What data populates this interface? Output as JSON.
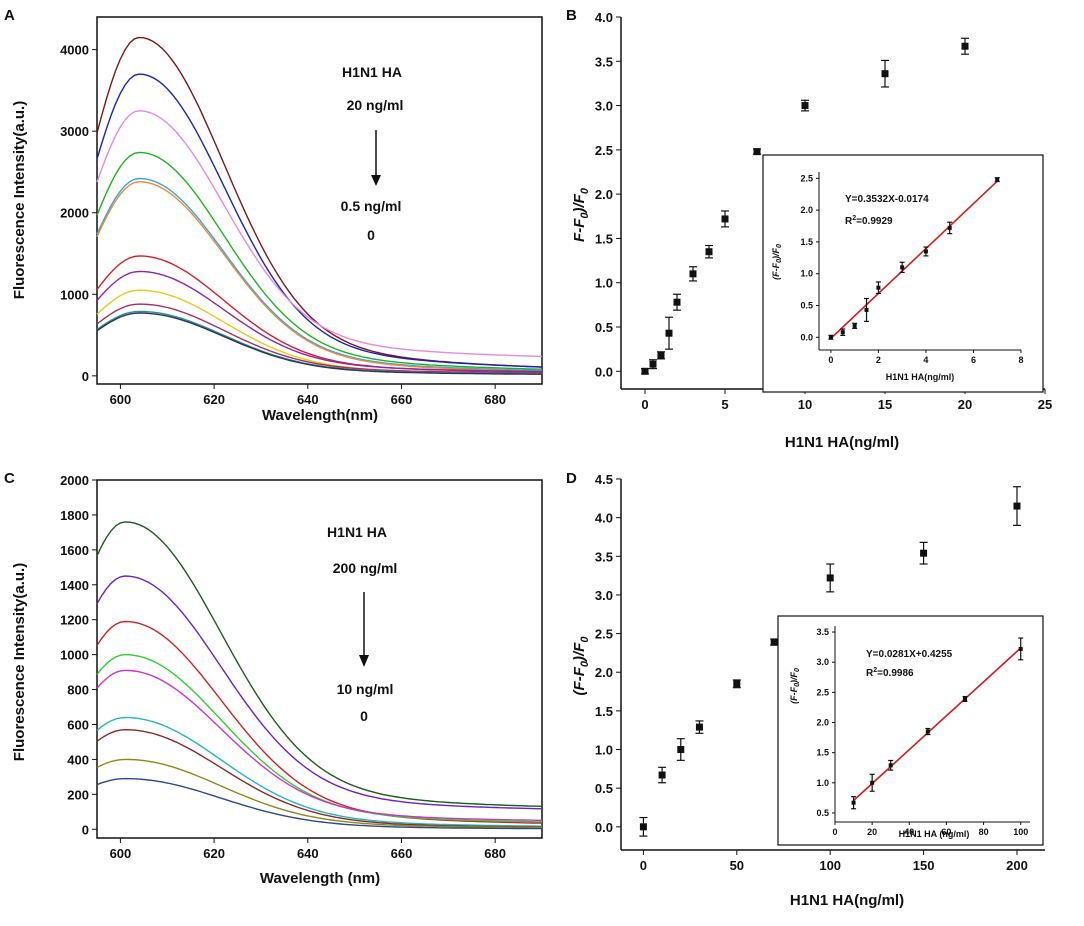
{
  "chart_data": [
    {
      "panel": "A",
      "type": "line",
      "xlabel": "Wavelength(nm)",
      "ylabel": "Fluorescence Intensity(a.u.)",
      "xlim": [
        595,
        690
      ],
      "ylim": [
        -100,
        4400
      ],
      "xticks": [
        600,
        620,
        640,
        660,
        680
      ],
      "yticks": [
        0,
        1000,
        2000,
        3000,
        4000
      ],
      "annotations": [
        "H1N1 HA",
        "20 ng/ml",
        "0.5 ng/ml",
        "0"
      ],
      "series": [
        {
          "color": "#7a1818",
          "peak": 4150,
          "base": 30
        },
        {
          "color": "#1a24b8",
          "peak": 3700,
          "base": 40
        },
        {
          "color": "#e38ae0",
          "peak": 3250,
          "base": 180
        },
        {
          "color": "#1db31d",
          "peak": 2740,
          "base": 30
        },
        {
          "color": "#37a6e8",
          "peak": 2420,
          "base": 20
        },
        {
          "color": "#f08a32",
          "peak": 2380,
          "base": 10
        },
        {
          "color": "#d2202a",
          "peak": 1470,
          "base": 20
        },
        {
          "color": "#8a2aa6",
          "peak": 1280,
          "base": 30
        },
        {
          "color": "#e3cc1a",
          "peak": 1050,
          "base": 10
        },
        {
          "color": "#a8325e",
          "peak": 880,
          "base": 20
        },
        {
          "color": "#2f8f90",
          "peak": 790,
          "base": 10
        },
        {
          "color": "#2a3560",
          "peak": 770,
          "base": 5
        }
      ]
    },
    {
      "panel": "B",
      "type": "scatter",
      "xlabel": "H1N1 HA(ng/ml)",
      "ylabel": "F-F0)/F0",
      "xlim": [
        -1.5,
        25
      ],
      "ylim": [
        -0.2,
        4.0
      ],
      "xticks": [
        0,
        5,
        10,
        15,
        20,
        25
      ],
      "yticks": [
        0.0,
        0.5,
        1.0,
        1.5,
        2.0,
        2.5,
        3.0,
        3.5,
        4.0
      ],
      "x": [
        0,
        0.5,
        1,
        1.5,
        2,
        3,
        4,
        5,
        7,
        10,
        15,
        20
      ],
      "y": [
        0.0,
        0.08,
        0.18,
        0.43,
        0.78,
        1.1,
        1.35,
        1.72,
        2.48,
        3.0,
        3.36,
        3.67
      ],
      "err": [
        0.03,
        0.05,
        0.04,
        0.18,
        0.09,
        0.08,
        0.07,
        0.09,
        0.03,
        0.06,
        0.15,
        0.09
      ],
      "inset": {
        "xlabel": "H1N1 HA(ng/ml)",
        "ylabel": "(F-F0)/F0",
        "xlim": [
          -0.5,
          8
        ],
        "ylim": [
          -0.2,
          2.6
        ],
        "xticks": [
          0,
          2,
          4,
          6,
          8
        ],
        "yticks": [
          0.0,
          0.5,
          1.0,
          1.5,
          2.0,
          2.5
        ],
        "x": [
          0,
          0.5,
          1,
          1.5,
          2,
          3,
          4,
          5,
          7
        ],
        "y": [
          0.0,
          0.08,
          0.18,
          0.43,
          0.78,
          1.1,
          1.35,
          1.72,
          2.48
        ],
        "err": [
          0.03,
          0.05,
          0.04,
          0.18,
          0.09,
          0.08,
          0.07,
          0.09,
          0.03
        ],
        "fit": {
          "slope": 0.3532,
          "intercept": -0.0174,
          "x_range": [
            0,
            7
          ]
        },
        "equation": "Y=0.3532X-0.0174",
        "r2_prefix": "R",
        "r2_sup": "2",
        "r2_value": "=0.9929"
      }
    },
    {
      "panel": "C",
      "type": "line",
      "xlabel": "Wavelength (nm)",
      "ylabel": "Fluorescence Intensity(a.u.)",
      "xlim": [
        595,
        690
      ],
      "ylim": [
        -50,
        2000
      ],
      "xticks": [
        600,
        620,
        640,
        660,
        680
      ],
      "yticks": [
        0,
        200,
        400,
        600,
        800,
        1000,
        1200,
        1400,
        1600,
        1800,
        2000
      ],
      "annotations": [
        "H1N1 HA",
        "200 ng/ml",
        "10 ng/ml",
        "0"
      ],
      "series": [
        {
          "color": "#1c5c1c",
          "peak": 1760,
          "base": 110
        },
        {
          "color": "#6a22c8",
          "peak": 1450,
          "base": 100
        },
        {
          "color": "#cc2222",
          "peak": 1190,
          "base": 20
        },
        {
          "color": "#33cc33",
          "peak": 1000,
          "base": 30
        },
        {
          "color": "#cc33cc",
          "peak": 910,
          "base": 40
        },
        {
          "color": "#22b5c8",
          "peak": 640,
          "base": 10
        },
        {
          "color": "#8a2a2a",
          "peak": 570,
          "base": 5
        },
        {
          "color": "#8a8a18",
          "peak": 400,
          "base": 5
        },
        {
          "color": "#2a4a8a",
          "peak": 290,
          "base": 0
        }
      ]
    },
    {
      "panel": "D",
      "type": "scatter",
      "xlabel": "H1N1 HA(ng/ml)",
      "ylabel": "(F-F0)/F0",
      "xlim": [
        -12,
        215
      ],
      "ylim": [
        -0.3,
        4.5
      ],
      "xticks": [
        0,
        50,
        100,
        150,
        200
      ],
      "yticks": [
        0.0,
        0.5,
        1.0,
        1.5,
        2.0,
        2.5,
        3.0,
        3.5,
        4.0,
        4.5
      ],
      "x": [
        0,
        10,
        20,
        30,
        50,
        70,
        100,
        150,
        200
      ],
      "y": [
        0.0,
        0.67,
        1.0,
        1.29,
        1.85,
        2.39,
        3.22,
        3.54,
        4.15
      ],
      "err": [
        0.12,
        0.1,
        0.14,
        0.08,
        0.05,
        0.04,
        0.18,
        0.14,
        0.25
      ],
      "inset": {
        "xlabel": "H1N1 HA (ng/ml)",
        "ylabel": "(F-F0)/F0",
        "xlim": [
          0,
          105
        ],
        "ylim": [
          0.35,
          3.6
        ],
        "xticks": [
          0,
          20,
          40,
          60,
          80,
          100
        ],
        "yticks": [
          0.5,
          1.0,
          1.5,
          2.0,
          2.5,
          3.0,
          3.5
        ],
        "x": [
          10,
          20,
          30,
          50,
          70,
          100
        ],
        "y": [
          0.67,
          1.0,
          1.29,
          1.85,
          2.39,
          3.22
        ],
        "err": [
          0.1,
          0.14,
          0.08,
          0.05,
          0.04,
          0.18
        ],
        "fit": {
          "slope": 0.0281,
          "intercept": 0.4255,
          "x_range": [
            10,
            100
          ]
        },
        "equation": "Y=0.0281X+0.4255",
        "r2_prefix": "R",
        "r2_sup": "2",
        "r2_value": "=0.9986"
      }
    }
  ],
  "labels": {
    "A": "A",
    "B": "B",
    "C": "C",
    "D": "D",
    "B_y_main": "F-F",
    "B_y_sub": "0",
    "B_y_mid": ")/F",
    "B_y_sub2": "0",
    "D_y_main": "(F-F",
    "D_y_sub": "0",
    "D_y_mid": ")/F",
    "D_y_sub2": "0",
    "iB_y_a": "(F-F",
    "iB_y_b": "0",
    "iB_y_c": ")/F",
    "iB_y_d": "0",
    "iD_y_a": "(F-F",
    "iD_y_b": "0",
    "iD_y_c": ")/F",
    "iD_y_d": "0"
  },
  "colors": {
    "axis": "#111111",
    "fit_line": "#cc1f1f",
    "marker": "#111111"
  }
}
